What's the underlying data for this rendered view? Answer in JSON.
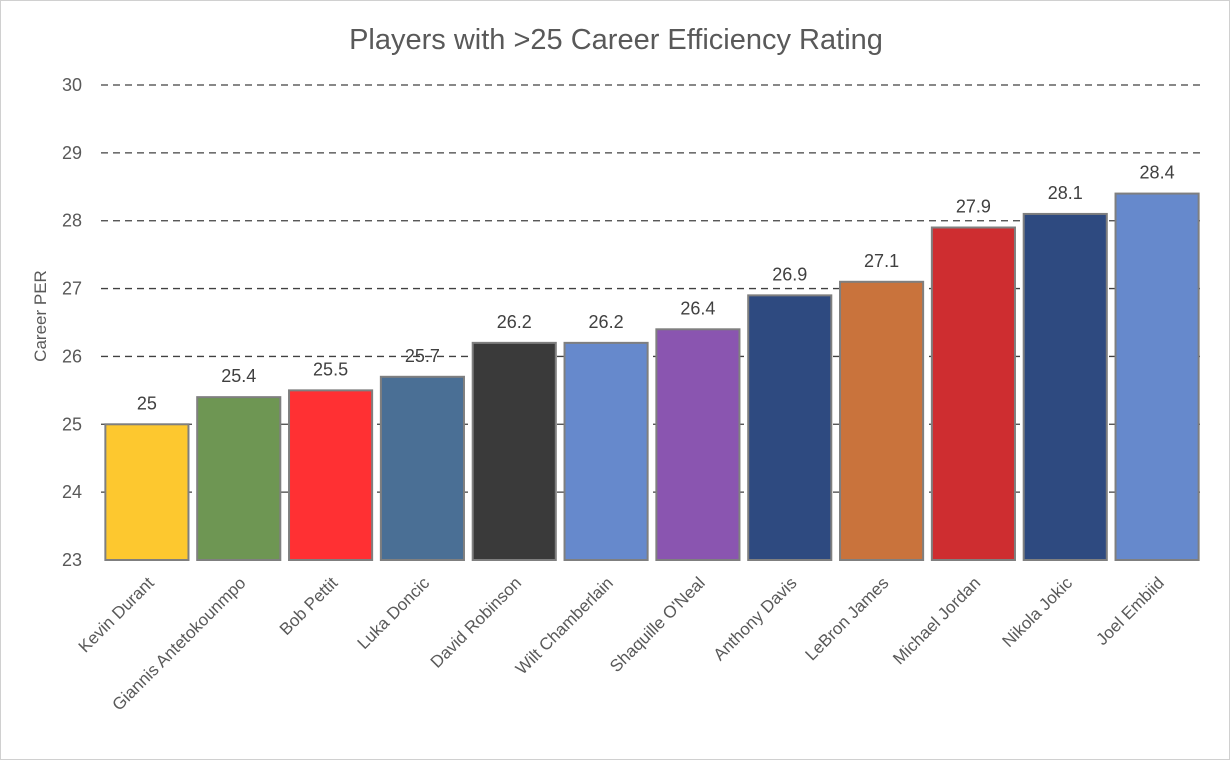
{
  "chart_data": {
    "type": "bar",
    "title": "Players with >25 Career Efficiency Rating",
    "xlabel": "",
    "ylabel": "Career PER",
    "ylim": [
      23,
      30
    ],
    "yticks": [
      23,
      24,
      25,
      26,
      27,
      28,
      29,
      30
    ],
    "grid": true,
    "legend": "none",
    "categories": [
      "Kevin Durant",
      "Giannis Antetokounmpo",
      "Bob Pettit",
      "Luka Doncic",
      "David Robinson",
      "Wilt Chamberlain",
      "Shaquille O'Neal",
      "Anthony Davis",
      "LeBron James",
      "Michael Jordan",
      "Nikola Jokic",
      "Joel Embiid"
    ],
    "values": [
      25,
      25.4,
      25.5,
      25.7,
      26.2,
      26.2,
      26.4,
      26.9,
      27.1,
      27.9,
      28.1,
      28.4
    ],
    "colors": [
      "#FDC82F",
      "#6E9653",
      "#FF3033",
      "#4A6F95",
      "#3A3A3A",
      "#6689CC",
      "#8A55B0",
      "#2E4A80",
      "#C9733C",
      "#CE2D30",
      "#2E4A80",
      "#6689CC"
    ]
  }
}
